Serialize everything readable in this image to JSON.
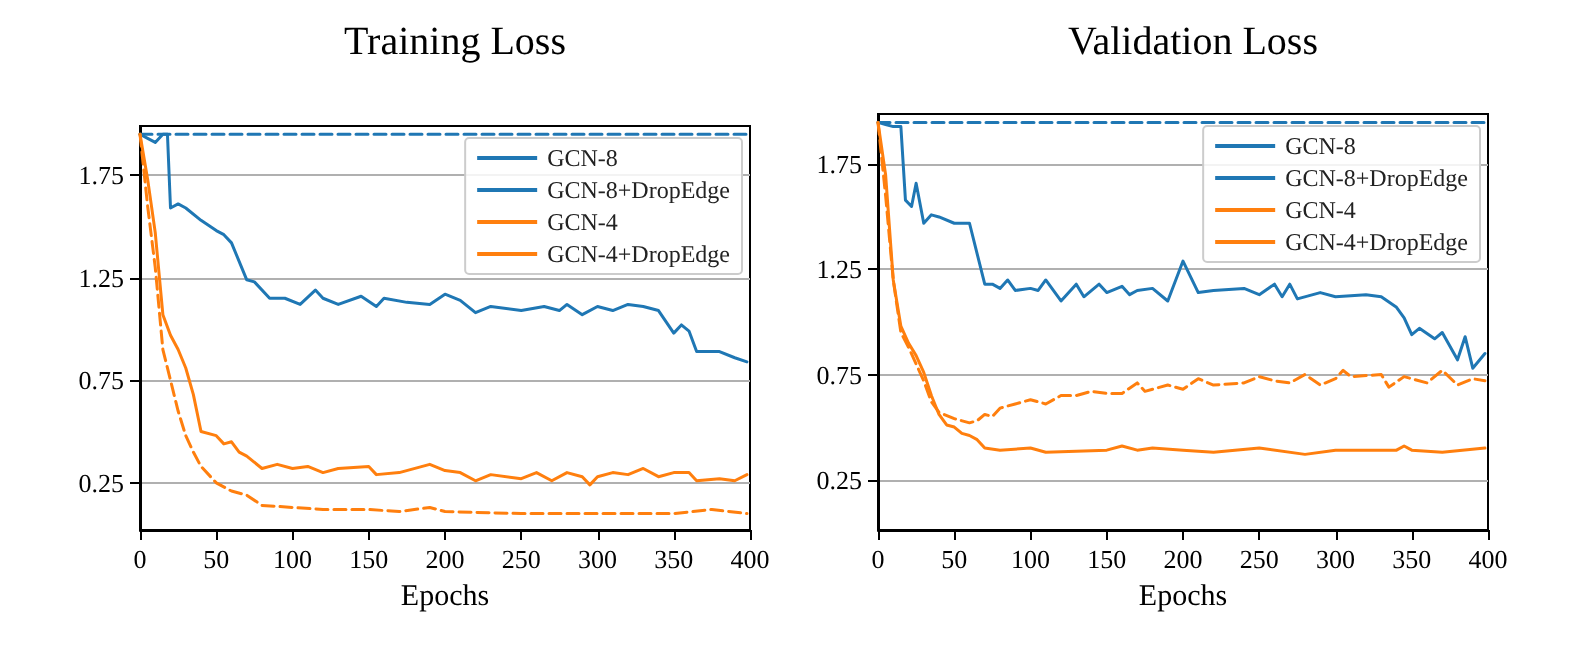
{
  "chart_data": [
    {
      "type": "line",
      "title": "Training Loss",
      "xlabel": "Epochs",
      "xlim": [
        0,
        400
      ],
      "xticks": [
        0,
        50,
        100,
        150,
        200,
        250,
        300,
        350,
        400
      ],
      "ylim": [
        0.02,
        1.99
      ],
      "yticks": [
        0.25,
        0.75,
        1.25,
        1.75
      ],
      "grid": "y",
      "legend": "top right",
      "marker": "none",
      "series": [
        {
          "name": "GCN-8",
          "color": "#1f77b4",
          "line_style": "dashed",
          "x": [
            0,
            400
          ],
          "values": [
            1.95,
            1.95
          ]
        },
        {
          "name": "GCN-8+DropEdge",
          "color": "#1f77b4",
          "line_style": "solid",
          "x": [
            0,
            5,
            10,
            15,
            18,
            20,
            25,
            30,
            40,
            50,
            55,
            60,
            70,
            75,
            85,
            95,
            105,
            115,
            120,
            130,
            145,
            155,
            160,
            175,
            190,
            200,
            210,
            220,
            230,
            250,
            265,
            275,
            280,
            290,
            300,
            310,
            320,
            330,
            340,
            350,
            355,
            360,
            365,
            380,
            390,
            398
          ],
          "values": [
            1.95,
            1.93,
            1.91,
            1.95,
            1.95,
            1.59,
            1.61,
            1.59,
            1.53,
            1.48,
            1.46,
            1.42,
            1.24,
            1.23,
            1.15,
            1.15,
            1.12,
            1.19,
            1.15,
            1.12,
            1.16,
            1.11,
            1.15,
            1.13,
            1.12,
            1.17,
            1.14,
            1.08,
            1.11,
            1.09,
            1.11,
            1.09,
            1.12,
            1.07,
            1.11,
            1.09,
            1.12,
            1.11,
            1.09,
            0.98,
            1.02,
            0.99,
            0.89,
            0.89,
            0.86,
            0.84
          ]
        },
        {
          "name": "GCN-4",
          "color": "#ff7f0e",
          "line_style": "dashed",
          "x": [
            0,
            5,
            10,
            15,
            20,
            25,
            30,
            35,
            40,
            50,
            60,
            70,
            80,
            100,
            120,
            150,
            170,
            190,
            200,
            250,
            300,
            350,
            375,
            398
          ],
          "values": [
            1.95,
            1.6,
            1.3,
            0.9,
            0.75,
            0.6,
            0.48,
            0.4,
            0.33,
            0.25,
            0.21,
            0.19,
            0.14,
            0.13,
            0.12,
            0.12,
            0.11,
            0.13,
            0.11,
            0.1,
            0.1,
            0.1,
            0.12,
            0.1
          ]
        },
        {
          "name": "GCN-4+DropEdge",
          "color": "#ff7f0e",
          "line_style": "solid",
          "x": [
            0,
            5,
            10,
            15,
            20,
            25,
            30,
            35,
            40,
            50,
            55,
            60,
            65,
            70,
            80,
            90,
            100,
            110,
            120,
            130,
            150,
            155,
            170,
            190,
            200,
            210,
            220,
            230,
            250,
            260,
            270,
            280,
            290,
            295,
            300,
            310,
            320,
            330,
            340,
            350,
            360,
            365,
            380,
            390,
            398
          ],
          "values": [
            1.95,
            1.73,
            1.47,
            1.07,
            0.97,
            0.9,
            0.81,
            0.68,
            0.5,
            0.48,
            0.44,
            0.45,
            0.4,
            0.38,
            0.32,
            0.34,
            0.32,
            0.33,
            0.3,
            0.32,
            0.33,
            0.29,
            0.3,
            0.34,
            0.31,
            0.3,
            0.26,
            0.29,
            0.27,
            0.3,
            0.26,
            0.3,
            0.28,
            0.24,
            0.28,
            0.3,
            0.29,
            0.32,
            0.28,
            0.3,
            0.3,
            0.26,
            0.27,
            0.26,
            0.29
          ]
        }
      ]
    },
    {
      "type": "line",
      "title": "Validation Loss",
      "xlabel": "Epochs",
      "xlim": [
        0,
        400
      ],
      "xticks": [
        0,
        50,
        100,
        150,
        200,
        250,
        300,
        350,
        400
      ],
      "ylim": [
        0.01,
        1.99
      ],
      "yticks": [
        0.25,
        0.75,
        1.25,
        1.75
      ],
      "grid": "y",
      "legend": "top right",
      "marker": "none",
      "series": [
        {
          "name": "GCN-8",
          "color": "#1f77b4",
          "line_style": "dashed",
          "x": [
            0,
            400
          ],
          "values": [
            1.95,
            1.95
          ]
        },
        {
          "name": "GCN-8+DropEdge",
          "color": "#1f77b4",
          "line_style": "solid",
          "x": [
            0,
            5,
            10,
            15,
            18,
            22,
            25,
            30,
            35,
            40,
            50,
            55,
            60,
            70,
            75,
            80,
            85,
            90,
            100,
            105,
            110,
            120,
            130,
            135,
            145,
            150,
            160,
            165,
            170,
            180,
            190,
            200,
            210,
            220,
            240,
            250,
            260,
            265,
            270,
            275,
            290,
            300,
            320,
            330,
            340,
            345,
            350,
            355,
            365,
            370,
            380,
            385,
            390,
            398
          ],
          "values": [
            1.95,
            1.94,
            1.93,
            1.93,
            1.58,
            1.55,
            1.66,
            1.47,
            1.51,
            1.5,
            1.47,
            1.47,
            1.47,
            1.18,
            1.18,
            1.16,
            1.2,
            1.15,
            1.16,
            1.15,
            1.2,
            1.1,
            1.18,
            1.12,
            1.18,
            1.14,
            1.17,
            1.13,
            1.15,
            1.16,
            1.1,
            1.29,
            1.14,
            1.15,
            1.16,
            1.13,
            1.18,
            1.12,
            1.18,
            1.11,
            1.14,
            1.12,
            1.13,
            1.12,
            1.07,
            1.02,
            0.94,
            0.97,
            0.92,
            0.95,
            0.82,
            0.93,
            0.78,
            0.85
          ]
        },
        {
          "name": "GCN-4",
          "color": "#ff7f0e",
          "line_style": "dashed",
          "x": [
            0,
            5,
            10,
            15,
            20,
            25,
            30,
            35,
            40,
            50,
            60,
            65,
            70,
            75,
            80,
            90,
            100,
            110,
            120,
            130,
            140,
            150,
            160,
            170,
            175,
            190,
            200,
            210,
            220,
            240,
            250,
            260,
            270,
            280,
            290,
            300,
            305,
            310,
            330,
            335,
            345,
            360,
            370,
            380,
            390,
            398
          ],
          "values": [
            1.95,
            1.6,
            1.2,
            0.95,
            0.88,
            0.8,
            0.72,
            0.62,
            0.57,
            0.54,
            0.52,
            0.53,
            0.56,
            0.55,
            0.59,
            0.61,
            0.63,
            0.61,
            0.65,
            0.65,
            0.67,
            0.66,
            0.66,
            0.71,
            0.67,
            0.7,
            0.68,
            0.73,
            0.7,
            0.71,
            0.74,
            0.72,
            0.71,
            0.75,
            0.7,
            0.73,
            0.77,
            0.74,
            0.75,
            0.69,
            0.74,
            0.71,
            0.77,
            0.7,
            0.73,
            0.72
          ]
        },
        {
          "name": "GCN-4+DropEdge",
          "color": "#ff7f0e",
          "line_style": "solid",
          "x": [
            0,
            5,
            10,
            15,
            20,
            25,
            30,
            35,
            40,
            45,
            50,
            55,
            60,
            65,
            70,
            80,
            100,
            110,
            150,
            160,
            170,
            180,
            200,
            220,
            250,
            280,
            300,
            340,
            345,
            350,
            370,
            398
          ],
          "values": [
            1.95,
            1.7,
            1.2,
            0.98,
            0.9,
            0.84,
            0.76,
            0.65,
            0.56,
            0.51,
            0.5,
            0.47,
            0.46,
            0.44,
            0.4,
            0.39,
            0.4,
            0.38,
            0.39,
            0.41,
            0.39,
            0.4,
            0.39,
            0.38,
            0.4,
            0.37,
            0.39,
            0.39,
            0.41,
            0.39,
            0.38,
            0.4
          ]
        }
      ]
    }
  ]
}
